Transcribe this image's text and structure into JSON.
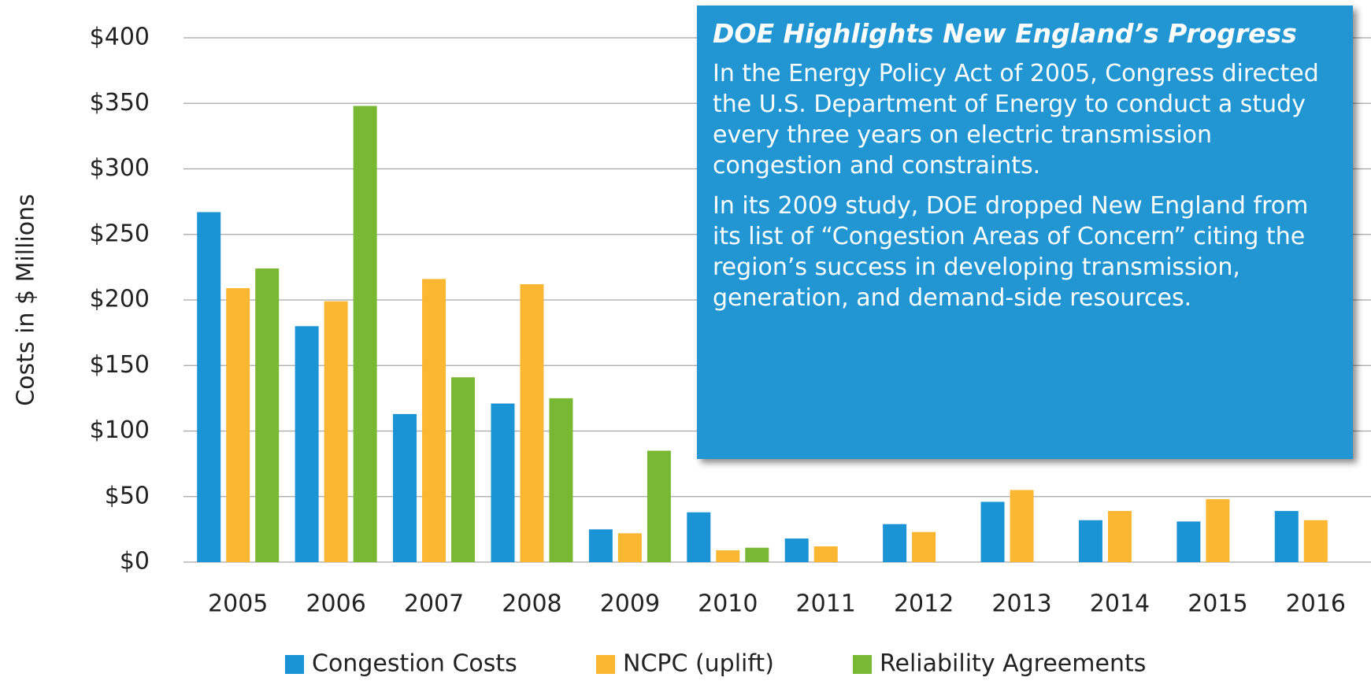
{
  "chart_data": {
    "type": "bar",
    "y_axis_label": "Costs in $ Millions",
    "categories": [
      "2005",
      "2006",
      "2007",
      "2008",
      "2009",
      "2010",
      "2011",
      "2012",
      "2013",
      "2014",
      "2015",
      "2016"
    ],
    "series": [
      {
        "name": "Congestion Costs",
        "color": "#1a94d4",
        "values": [
          267,
          180,
          113,
          121,
          25,
          38,
          18,
          29,
          46,
          32,
          31,
          39
        ]
      },
      {
        "name": "NCPC (uplift)",
        "color": "#fbb731",
        "values": [
          209,
          199,
          216,
          212,
          22,
          9,
          12,
          23,
          55,
          39,
          48,
          32
        ]
      },
      {
        "name": "Reliability Agreements",
        "color": "#78b833",
        "values": [
          224,
          348,
          141,
          125,
          85,
          11,
          null,
          null,
          null,
          null,
          null,
          null
        ]
      }
    ],
    "ylim": [
      0,
      400
    ],
    "yticks": [
      {
        "value": 0,
        "label": "$0"
      },
      {
        "value": 50,
        "label": "$50"
      },
      {
        "value": 100,
        "label": "$100"
      },
      {
        "value": 150,
        "label": "$150"
      },
      {
        "value": 200,
        "label": "$200"
      },
      {
        "value": 250,
        "label": "$250"
      },
      {
        "value": 300,
        "label": "$300"
      },
      {
        "value": 350,
        "label": "$350"
      },
      {
        "value": 400,
        "label": "$400"
      }
    ],
    "grid": true,
    "legend": "bottom",
    "annotation": {
      "title": "DOE Highlights New England’s Progress",
      "paragraphs": [
        "In the Energy Policy Act of 2005, Congress directed the U.S. Department of Energy to conduct a study every three years on electric transmission congestion and constraints.",
        "In its 2009 study, DOE dropped New England from its list of “Congestion Areas of Concern” citing the region’s success in developing transmission, generation, and demand-side resources."
      ]
    }
  }
}
